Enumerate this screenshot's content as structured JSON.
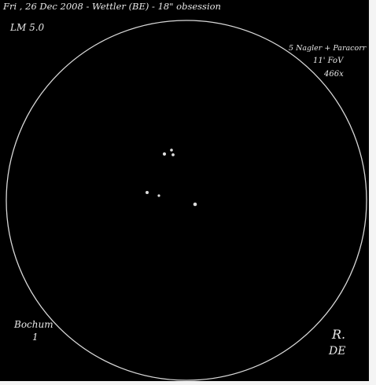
{
  "header": {
    "line": "Fri , 26 Dec 2008 - Wettler (BE) - 18\" obsession"
  },
  "limiting_magnitude": "LM 5.0",
  "optics": {
    "eyepiece": "5 Nagler + Paracorr",
    "fov": "11' FoV",
    "magnification": "466x"
  },
  "object": {
    "name": "Bochum",
    "number": "1"
  },
  "signature": {
    "line1": "R.",
    "line2": "DE"
  },
  "colors": {
    "background": "#000000",
    "ink": "#e8e8e8",
    "star": "#dcdcdc"
  }
}
